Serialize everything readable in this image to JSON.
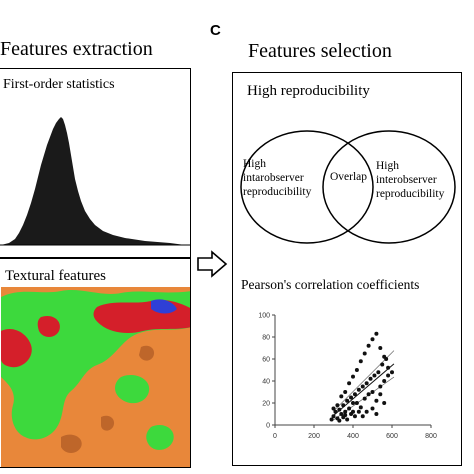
{
  "left": {
    "title": "Features extraction",
    "histogram_label": "First-order statistics",
    "texture_label": "Textural features"
  },
  "panel_letter": "C",
  "right": {
    "title": "Features selection",
    "high_repro_label": "High reproducibility",
    "venn": {
      "left_lines": [
        "High",
        "intarobserver",
        "reproducibility"
      ],
      "overlap": "Overlap",
      "right_lines": [
        "High",
        "interobserver",
        "reproducibility"
      ]
    },
    "pearson_label": "Pearson's correlation coefficients"
  },
  "icons": {
    "arrow": "hollow-right-arrow-icon"
  },
  "colors": {
    "histogram": "#1a1a1a",
    "texture_orange": "#e8873a",
    "texture_green": "#3dd93d",
    "texture_red": "#d41f2a",
    "texture_blue": "#2f3fd6"
  },
  "chart_data": {
    "type": "scatter",
    "x_ticks": [
      "0",
      "200",
      "400",
      "600",
      "800"
    ],
    "y_ticks": [
      "0",
      "20",
      "40",
      "60",
      "80",
      "100"
    ],
    "xlim": [
      0,
      800
    ],
    "ylim": [
      0,
      100
    ],
    "grid": false,
    "points": [
      [
        290,
        5
      ],
      [
        300,
        8
      ],
      [
        310,
        12
      ],
      [
        320,
        6
      ],
      [
        330,
        14
      ],
      [
        340,
        10
      ],
      [
        350,
        18
      ],
      [
        360,
        9
      ],
      [
        370,
        22
      ],
      [
        380,
        15
      ],
      [
        390,
        25
      ],
      [
        400,
        12
      ],
      [
        410,
        28
      ],
      [
        420,
        20
      ],
      [
        430,
        32
      ],
      [
        440,
        16
      ],
      [
        450,
        35
      ],
      [
        460,
        24
      ],
      [
        470,
        38
      ],
      [
        480,
        28
      ],
      [
        490,
        42
      ],
      [
        500,
        30
      ],
      [
        510,
        45
      ],
      [
        520,
        22
      ],
      [
        530,
        48
      ],
      [
        540,
        35
      ],
      [
        550,
        55
      ],
      [
        560,
        40
      ],
      [
        570,
        60
      ],
      [
        580,
        45
      ],
      [
        330,
        4
      ],
      [
        350,
        7
      ],
      [
        370,
        5
      ],
      [
        390,
        10
      ],
      [
        410,
        8
      ],
      [
        430,
        12
      ],
      [
        360,
        30
      ],
      [
        380,
        38
      ],
      [
        400,
        44
      ],
      [
        420,
        50
      ],
      [
        440,
        58
      ],
      [
        460,
        65
      ],
      [
        480,
        72
      ],
      [
        500,
        78
      ],
      [
        520,
        83
      ],
      [
        540,
        70
      ],
      [
        560,
        62
      ],
      [
        580,
        52
      ],
      [
        600,
        48
      ],
      [
        320,
        18
      ],
      [
        300,
        15
      ],
      [
        340,
        26
      ],
      [
        360,
        12
      ],
      [
        400,
        20
      ],
      [
        450,
        8
      ],
      [
        470,
        12
      ],
      [
        500,
        15
      ],
      [
        520,
        10
      ],
      [
        560,
        20
      ],
      [
        540,
        28
      ]
    ]
  }
}
